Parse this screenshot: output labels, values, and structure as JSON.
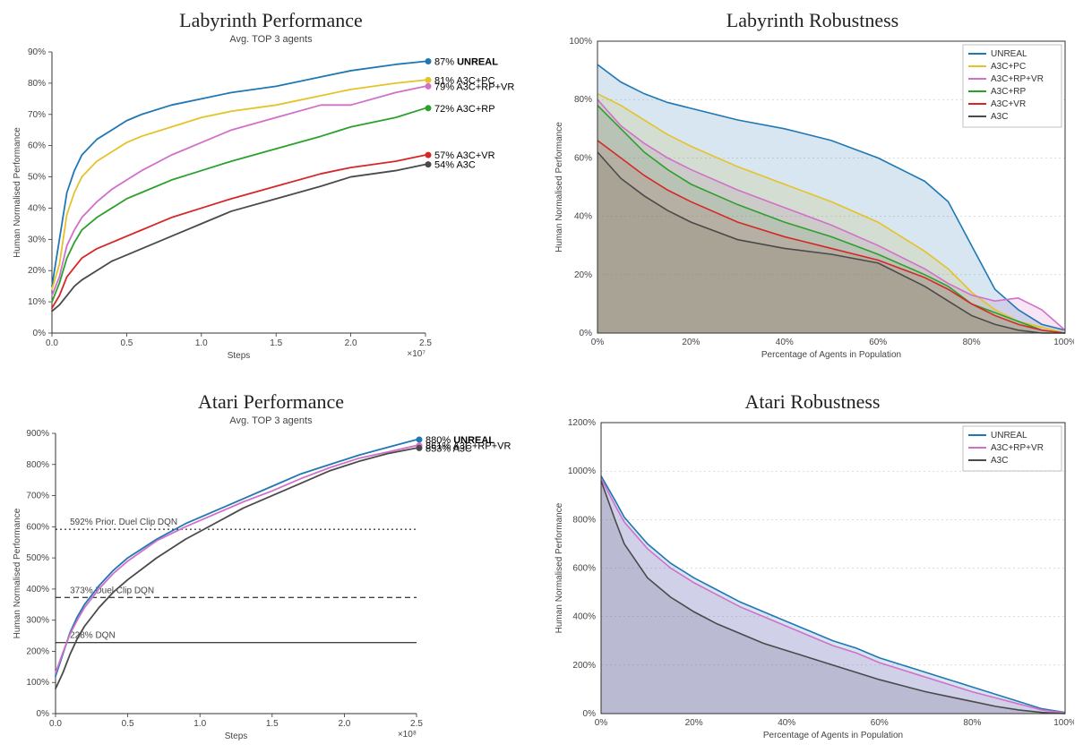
{
  "colors": {
    "unreal": "#1f77b4",
    "a3c_pc": "#e6c229",
    "a3c_rp_vr": "#d070c8",
    "a3c_rp": "#2ca02c",
    "a3c_vr": "#d62728",
    "a3c": "#4a4a4a",
    "grid": "#888888",
    "axis": "#333333",
    "bg": "#ffffff"
  },
  "panel1": {
    "title": "Labyrinth Performance",
    "subtitle": "Avg. TOP 3 agents",
    "xlabel": "Steps",
    "ylabel": "Human Normalised Performance",
    "x_exp": "×10⁷",
    "xlim": [
      0,
      2.5
    ],
    "ylim": [
      0,
      90
    ],
    "xticks": [
      0.0,
      0.5,
      1.0,
      1.5,
      2.0,
      2.5
    ],
    "yticks": [
      0,
      10,
      20,
      30,
      40,
      50,
      60,
      70,
      80,
      90
    ],
    "series": [
      {
        "key": "unreal",
        "label": "UNREAL",
        "final": 87,
        "bold": true,
        "x": [
          0,
          0.05,
          0.1,
          0.15,
          0.2,
          0.3,
          0.4,
          0.5,
          0.6,
          0.8,
          1.0,
          1.2,
          1.5,
          1.8,
          2.0,
          2.3,
          2.5
        ],
        "y": [
          15,
          30,
          45,
          52,
          57,
          62,
          65,
          68,
          70,
          73,
          75,
          77,
          79,
          82,
          84,
          86,
          87
        ]
      },
      {
        "key": "a3c_pc",
        "label": "A3C+PC",
        "final": 81,
        "x": [
          0,
          0.05,
          0.1,
          0.15,
          0.2,
          0.3,
          0.4,
          0.5,
          0.6,
          0.8,
          1.0,
          1.2,
          1.5,
          1.8,
          2.0,
          2.3,
          2.5
        ],
        "y": [
          14,
          22,
          38,
          45,
          50,
          55,
          58,
          61,
          63,
          66,
          69,
          71,
          73,
          76,
          78,
          80,
          81
        ]
      },
      {
        "key": "a3c_rp_vr",
        "label": "A3C+RP+VR",
        "final": 79,
        "x": [
          0,
          0.05,
          0.1,
          0.15,
          0.2,
          0.3,
          0.4,
          0.5,
          0.6,
          0.8,
          1.0,
          1.2,
          1.5,
          1.8,
          2.0,
          2.3,
          2.5
        ],
        "y": [
          12,
          18,
          28,
          33,
          37,
          42,
          46,
          49,
          52,
          57,
          61,
          65,
          69,
          73,
          73,
          77,
          79
        ]
      },
      {
        "key": "a3c_rp",
        "label": "A3C+RP",
        "final": 72,
        "x": [
          0,
          0.05,
          0.1,
          0.15,
          0.2,
          0.3,
          0.4,
          0.5,
          0.6,
          0.8,
          1.0,
          1.2,
          1.5,
          1.8,
          2.0,
          2.3,
          2.5
        ],
        "y": [
          10,
          16,
          24,
          29,
          33,
          37,
          40,
          43,
          45,
          49,
          52,
          55,
          59,
          63,
          66,
          69,
          72
        ]
      },
      {
        "key": "a3c_vr",
        "label": "A3C+VR",
        "final": 57,
        "x": [
          0,
          0.05,
          0.1,
          0.15,
          0.2,
          0.3,
          0.4,
          0.5,
          0.6,
          0.8,
          1.0,
          1.2,
          1.5,
          1.8,
          2.0,
          2.3,
          2.5
        ],
        "y": [
          8,
          12,
          18,
          21,
          24,
          27,
          29,
          31,
          33,
          37,
          40,
          43,
          47,
          51,
          53,
          55,
          57
        ]
      },
      {
        "key": "a3c",
        "label": "A3C",
        "final": 54,
        "x": [
          0,
          0.05,
          0.1,
          0.15,
          0.2,
          0.3,
          0.4,
          0.5,
          0.6,
          0.8,
          1.0,
          1.2,
          1.5,
          1.8,
          2.0,
          2.3,
          2.5
        ],
        "y": [
          7,
          9,
          12,
          15,
          17,
          20,
          23,
          25,
          27,
          31,
          35,
          39,
          43,
          47,
          50,
          52,
          54
        ]
      }
    ]
  },
  "panel2": {
    "title": "Labyrinth Robustness",
    "xlabel": "Percentage of Agents in Population",
    "ylabel": "Human Normalised Performance",
    "xlim": [
      0,
      100
    ],
    "ylim": [
      0,
      100
    ],
    "xticks": [
      0,
      20,
      40,
      60,
      80,
      100
    ],
    "yticks": [
      0,
      20,
      40,
      60,
      80,
      100
    ],
    "legend": [
      "UNREAL",
      "A3C+PC",
      "A3C+RP+VR",
      "A3C+RP",
      "A3C+VR",
      "A3C"
    ],
    "series": [
      {
        "key": "unreal",
        "label": "UNREAL",
        "x": [
          0,
          5,
          10,
          15,
          20,
          30,
          40,
          50,
          60,
          70,
          75,
          80,
          85,
          90,
          95,
          100
        ],
        "y": [
          92,
          86,
          82,
          79,
          77,
          73,
          70,
          66,
          60,
          52,
          45,
          30,
          15,
          8,
          3,
          1
        ]
      },
      {
        "key": "a3c_pc",
        "label": "A3C+PC",
        "x": [
          0,
          5,
          10,
          15,
          20,
          30,
          40,
          50,
          60,
          70,
          75,
          80,
          85,
          90,
          95,
          100
        ],
        "y": [
          82,
          78,
          73,
          68,
          64,
          57,
          51,
          45,
          38,
          28,
          22,
          14,
          8,
          4,
          2,
          0
        ]
      },
      {
        "key": "a3c_rp_vr",
        "label": "A3C+RP+VR",
        "x": [
          0,
          5,
          10,
          15,
          20,
          30,
          40,
          50,
          60,
          70,
          75,
          80,
          85,
          90,
          95,
          100
        ],
        "y": [
          80,
          71,
          65,
          60,
          56,
          49,
          43,
          37,
          30,
          22,
          17,
          13,
          11,
          12,
          8,
          1
        ]
      },
      {
        "key": "a3c_rp",
        "label": "A3C+RP",
        "x": [
          0,
          5,
          10,
          15,
          20,
          30,
          40,
          50,
          60,
          70,
          75,
          80,
          85,
          90,
          95,
          100
        ],
        "y": [
          78,
          70,
          62,
          56,
          51,
          44,
          38,
          33,
          27,
          20,
          16,
          10,
          7,
          4,
          1,
          0
        ]
      },
      {
        "key": "a3c_vr",
        "label": "A3C+VR",
        "x": [
          0,
          5,
          10,
          15,
          20,
          30,
          40,
          50,
          60,
          70,
          75,
          80,
          85,
          90,
          95,
          100
        ],
        "y": [
          66,
          60,
          54,
          49,
          45,
          38,
          33,
          29,
          25,
          19,
          15,
          10,
          6,
          3,
          1,
          0
        ]
      },
      {
        "key": "a3c",
        "label": "A3C",
        "x": [
          0,
          5,
          10,
          15,
          20,
          30,
          40,
          50,
          60,
          70,
          75,
          80,
          85,
          90,
          95,
          100
        ],
        "y": [
          62,
          53,
          47,
          42,
          38,
          32,
          29,
          27,
          24,
          16,
          11,
          6,
          3,
          1,
          0,
          0
        ]
      }
    ]
  },
  "panel3": {
    "title": "Atari Performance",
    "subtitle": "Avg. TOP 3 agents",
    "xlabel": "Steps",
    "ylabel": "Human Normalised Performance",
    "x_exp": "×10⁸",
    "xlim": [
      0,
      2.5
    ],
    "ylim": [
      0,
      900
    ],
    "xticks": [
      0.0,
      0.5,
      1.0,
      1.5,
      2.0,
      2.5
    ],
    "yticks": [
      0,
      100,
      200,
      300,
      400,
      500,
      600,
      700,
      800,
      900
    ],
    "hlines": [
      {
        "y": 592,
        "label": "592% Prior. Duel Clip DQN",
        "dash": "2,3"
      },
      {
        "y": 373,
        "label": "373% Duel Clip DQN",
        "dash": "6,4"
      },
      {
        "y": 228,
        "label": "228% DQN",
        "dash": ""
      }
    ],
    "series": [
      {
        "key": "unreal",
        "label": "UNREAL",
        "final": 880,
        "bold": true,
        "x": [
          0,
          0.05,
          0.1,
          0.15,
          0.2,
          0.3,
          0.4,
          0.5,
          0.7,
          0.9,
          1.1,
          1.3,
          1.5,
          1.7,
          1.9,
          2.1,
          2.3,
          2.5
        ],
        "y": [
          120,
          190,
          260,
          310,
          350,
          410,
          460,
          500,
          560,
          610,
          650,
          690,
          730,
          770,
          800,
          830,
          855,
          880
        ]
      },
      {
        "key": "a3c_rp_vr",
        "label": "A3C+RP+VR",
        "final": 861,
        "x": [
          0,
          0.05,
          0.1,
          0.15,
          0.2,
          0.3,
          0.4,
          0.5,
          0.7,
          0.9,
          1.1,
          1.3,
          1.5,
          1.7,
          1.9,
          2.1,
          2.3,
          2.5
        ],
        "y": [
          130,
          195,
          255,
          300,
          340,
          400,
          450,
          490,
          555,
          600,
          640,
          680,
          715,
          755,
          790,
          820,
          840,
          861
        ]
      },
      {
        "key": "a3c",
        "label": "A3C",
        "final": 853,
        "x": [
          0,
          0.05,
          0.1,
          0.15,
          0.2,
          0.3,
          0.4,
          0.5,
          0.7,
          0.9,
          1.1,
          1.3,
          1.5,
          1.7,
          1.9,
          2.1,
          2.3,
          2.5
        ],
        "y": [
          80,
          130,
          190,
          240,
          280,
          340,
          390,
          430,
          500,
          560,
          610,
          660,
          700,
          740,
          780,
          810,
          835,
          853
        ]
      }
    ]
  },
  "panel4": {
    "title": "Atari Robustness",
    "xlabel": "Percentage of Agents in Population",
    "ylabel": "Human Normalised Performance",
    "xlim": [
      0,
      100
    ],
    "ylim": [
      0,
      1200
    ],
    "xticks": [
      0,
      20,
      40,
      60,
      80,
      100
    ],
    "yticks": [
      0,
      200,
      400,
      600,
      800,
      1000,
      1200
    ],
    "legend": [
      "UNREAL",
      "A3C+RP+VR",
      "A3C"
    ],
    "series": [
      {
        "key": "unreal",
        "label": "UNREAL",
        "x": [
          0,
          3,
          5,
          10,
          15,
          20,
          25,
          30,
          35,
          40,
          45,
          50,
          55,
          60,
          65,
          70,
          75,
          80,
          85,
          90,
          95,
          100
        ],
        "y": [
          980,
          880,
          810,
          700,
          620,
          560,
          510,
          460,
          420,
          380,
          340,
          300,
          270,
          230,
          200,
          170,
          140,
          110,
          80,
          50,
          20,
          5
        ]
      },
      {
        "key": "a3c_rp_vr",
        "label": "A3C+RP+VR",
        "x": [
          0,
          3,
          5,
          10,
          15,
          20,
          25,
          30,
          35,
          40,
          45,
          50,
          55,
          60,
          65,
          70,
          75,
          80,
          85,
          90,
          95,
          100
        ],
        "y": [
          970,
          860,
          790,
          680,
          600,
          540,
          490,
          440,
          400,
          360,
          320,
          280,
          250,
          210,
          180,
          150,
          120,
          90,
          65,
          40,
          15,
          3
        ]
      },
      {
        "key": "a3c",
        "label": "A3C",
        "x": [
          0,
          3,
          5,
          10,
          15,
          20,
          25,
          30,
          35,
          40,
          45,
          50,
          55,
          60,
          65,
          70,
          75,
          80,
          85,
          90,
          95,
          100
        ],
        "y": [
          960,
          800,
          700,
          560,
          480,
          420,
          370,
          330,
          290,
          260,
          230,
          200,
          170,
          140,
          115,
          90,
          70,
          50,
          30,
          15,
          5,
          0
        ]
      }
    ]
  }
}
